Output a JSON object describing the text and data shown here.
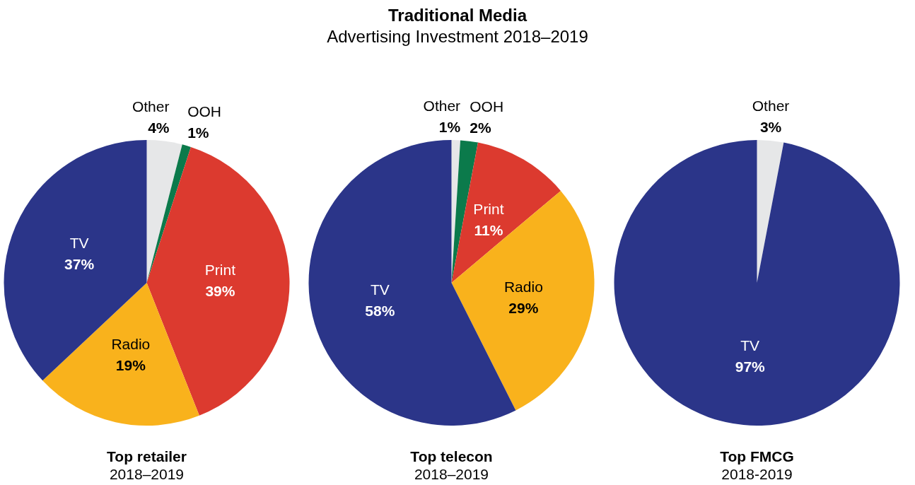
{
  "chart_data": [
    {
      "type": "other",
      "title": "Traditional Media",
      "subtitle": "Advertising Investment 2018–2019"
    },
    {
      "type": "pie",
      "title": "Top retailer",
      "subtitle": "2018–2019",
      "categories": [
        "Other",
        "OOH",
        "Print",
        "Radio",
        "TV"
      ],
      "values": [
        4,
        1,
        39,
        19,
        37
      ],
      "value_labels": [
        "4%",
        "1%",
        "39%",
        "19%",
        "37%"
      ],
      "colors": [
        "#e6e7e8",
        "#0b7a4b",
        "#dc3a2f",
        "#f9b21c",
        "#2b3589"
      ],
      "legend": false
    },
    {
      "type": "pie",
      "title": "Top telecon",
      "subtitle": "2018–2019",
      "categories": [
        "Other",
        "OOH",
        "Print",
        "Radio",
        "TV"
      ],
      "values": [
        1,
        2,
        11,
        29,
        58
      ],
      "value_labels": [
        "1%",
        "2%",
        "11%",
        "29%",
        "58%"
      ],
      "colors": [
        "#e6e7e8",
        "#0b7a4b",
        "#dc3a2f",
        "#f9b21c",
        "#2b3589"
      ],
      "legend": false
    },
    {
      "type": "pie",
      "title": "Top FMCG",
      "subtitle": "2018-2019",
      "categories": [
        "Other",
        "TV"
      ],
      "values": [
        3,
        97
      ],
      "value_labels": [
        "3%",
        "97%"
      ],
      "colors": [
        "#e6e7e8",
        "#2b3589"
      ],
      "legend": false
    }
  ]
}
